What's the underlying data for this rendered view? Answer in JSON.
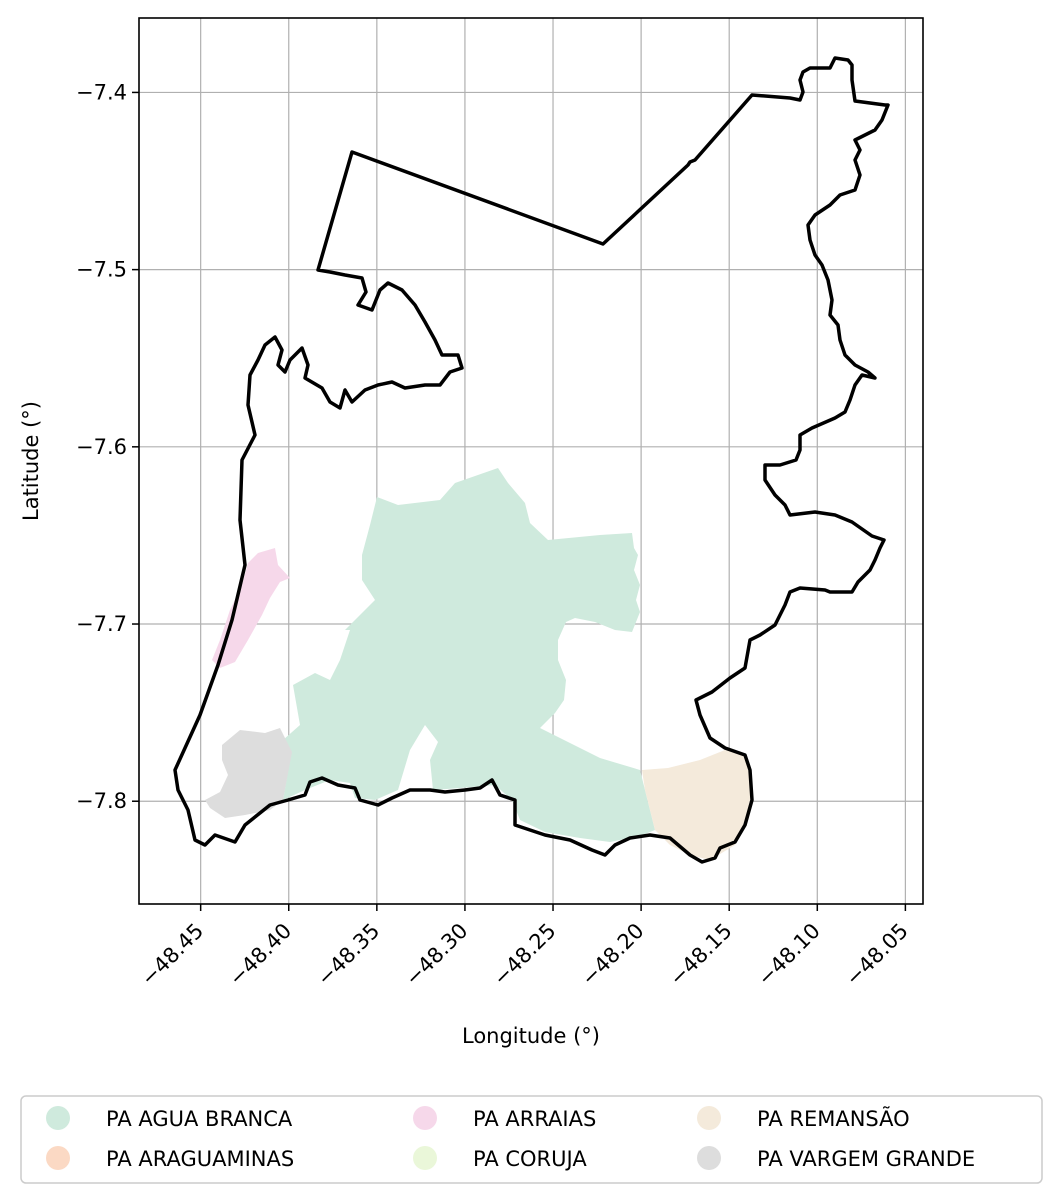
{
  "axes": {
    "xlabel": "Longitude (°)",
    "ylabel": "Latitude (°)",
    "xticks": [
      "−48.45",
      "−48.40",
      "−48.35",
      "−48.30",
      "−48.25",
      "−48.20",
      "−48.15",
      "−48.10",
      "−48.05"
    ],
    "yticks": [
      "−7.4",
      "−7.5",
      "−7.6",
      "−7.7",
      "−7.8"
    ],
    "xlim": [
      -48.485,
      -48.04
    ],
    "ylim": [
      -7.858,
      -7.358
    ],
    "grid": true
  },
  "legend": {
    "placement": "bottom",
    "items": [
      {
        "label": "PA AGUA BRANCA",
        "color": "#cfeadd"
      },
      {
        "label": "PA ARAGUAMINAS",
        "color": "#fbd9c4"
      },
      {
        "label": "PA ARRAIAS",
        "color": "#f6d8ea"
      },
      {
        "label": "PA CORUJA",
        "color": "#eaf7d9"
      },
      {
        "label": "PA REMANSÃO",
        "color": "#f4eadb"
      },
      {
        "label": "PA VARGEM GRANDE",
        "color": "#dddddd"
      }
    ]
  },
  "boundary_color": "#000000"
}
